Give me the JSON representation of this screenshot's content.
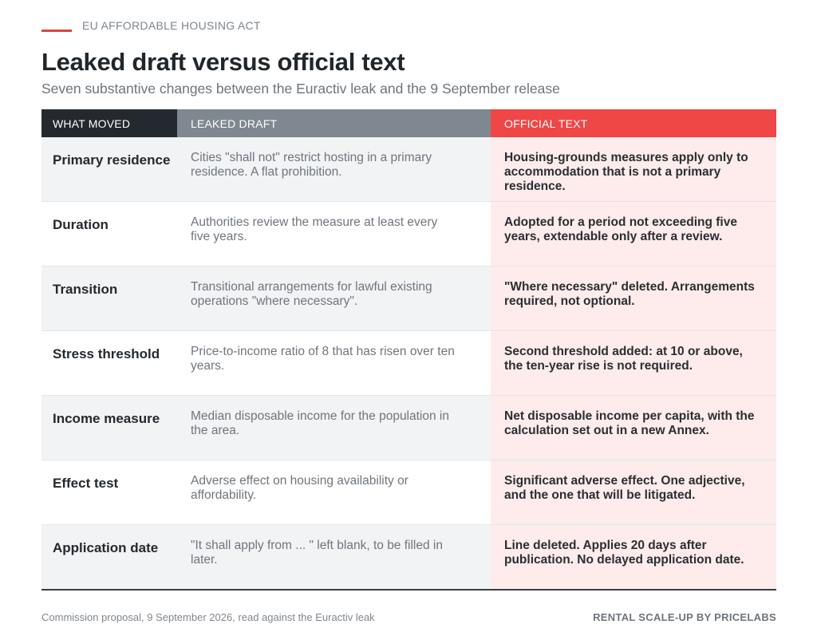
{
  "kicker": "EU AFFORDABLE HOUSING ACT",
  "title": "Leaked draft versus official text",
  "subtitle": "Seven substantive changes between the Euractiv leak and the 9 September release",
  "colors": {
    "accent": "#e2413d",
    "header_dark": "#23292f",
    "header_gray": "#7f8890",
    "header_red": "#ef4646",
    "official_bg": "#fdeceb"
  },
  "table": {
    "headers": [
      "WHAT MOVED",
      "LEAKED DRAFT",
      "OFFICIAL TEXT"
    ],
    "rows": [
      {
        "moved": "Primary residence",
        "leaked": "Cities \"shall not\" restrict hosting in a primary residence. A flat prohibition.",
        "official": "Housing-grounds measures apply only to accommodation that is not a primary residence."
      },
      {
        "moved": "Duration",
        "leaked": "Authorities review the measure at least every five years.",
        "official": "Adopted for a period not exceeding five years, extendable only after a review."
      },
      {
        "moved": "Transition",
        "leaked": "Transitional arrangements for lawful existing operations \"where necessary\".",
        "official": "\"Where necessary\" deleted. Arrangements required, not optional."
      },
      {
        "moved": "Stress threshold",
        "leaked": "Price-to-income ratio of 8 that has risen over ten years.",
        "official": "Second threshold added: at 10 or above, the ten-year rise is not required."
      },
      {
        "moved": "Income measure",
        "leaked": "Median disposable income for the population in the area.",
        "official": "Net disposable income per capita, with the calculation set out in a new Annex."
      },
      {
        "moved": "Effect test",
        "leaked": "Adverse effect on housing availability or affordability.",
        "official": "Significant adverse effect. One adjective, and the one that will be litigated."
      },
      {
        "moved": "Application date",
        "leaked": "\"It shall apply from ... \" left blank, to be filled in later.",
        "official": "Line deleted. Applies 20 days after publication. No delayed application date."
      }
    ]
  },
  "footer": {
    "source": "Commission proposal, 9 September 2026, read against the Euractiv leak",
    "credit": "RENTAL SCALE-UP  BY PRICELABS"
  }
}
